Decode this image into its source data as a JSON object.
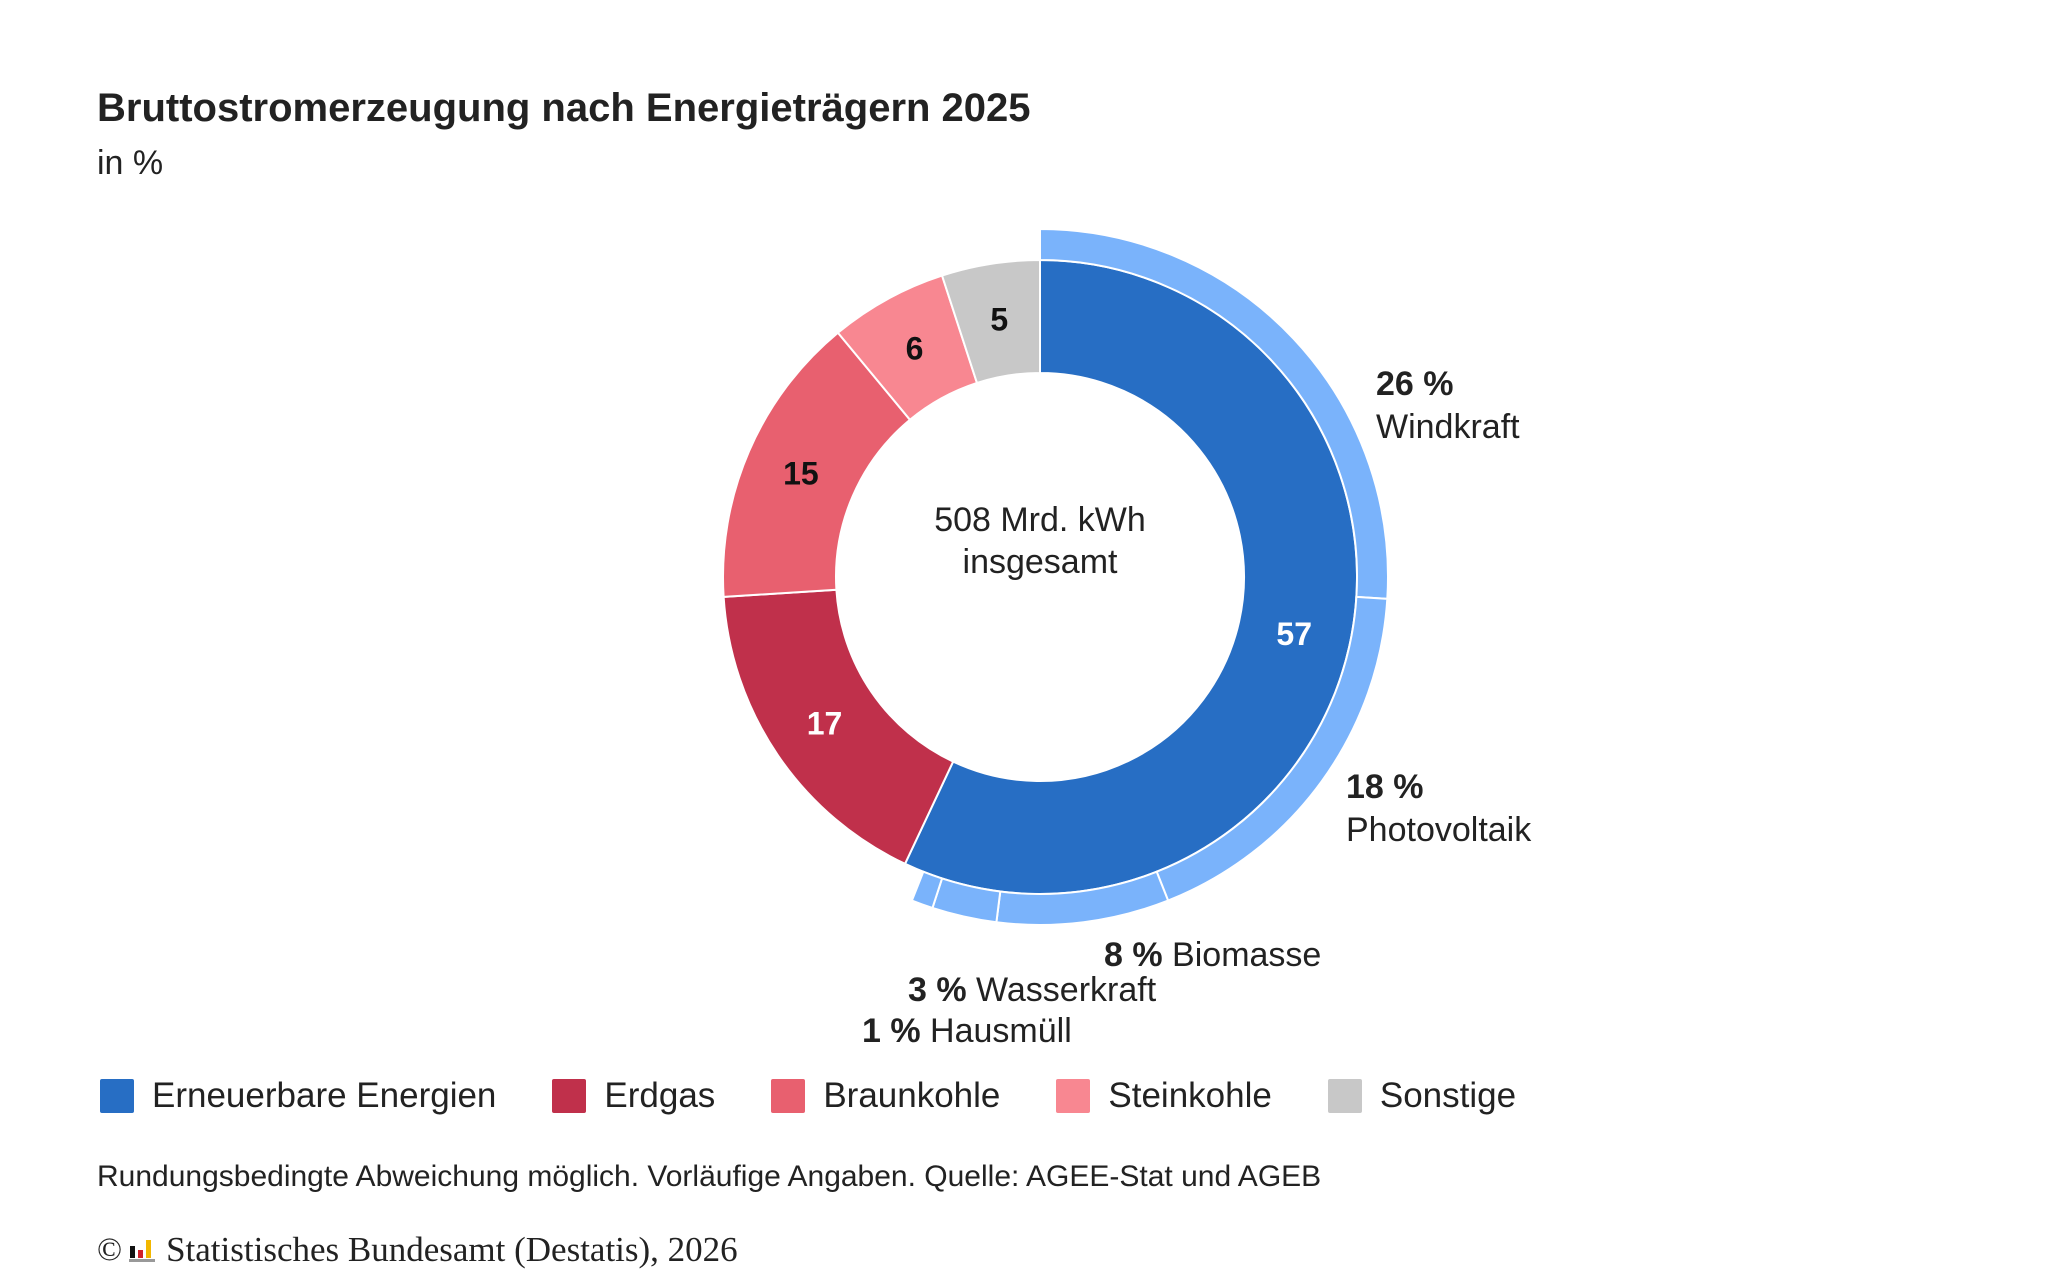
{
  "title": "Bruttostromerzeugung nach Energieträgern 2025",
  "subtitle": "in %",
  "center_label": [
    "508 Mrd. kWh",
    "insgesamt"
  ],
  "legend": [
    {
      "label": "Erneuerbare Energien",
      "color": "#276ec4"
    },
    {
      "label": "Erdgas",
      "color": "#c0304b"
    },
    {
      "label": "Braunkohle",
      "color": "#e8606f"
    },
    {
      "label": "Steinkohle",
      "color": "#f88791"
    },
    {
      "label": "Sonstige",
      "color": "#c8c8c8"
    }
  ],
  "footnote": "Rundungsbedingte Abweichung möglich. Vorläufige Angaben. Quelle: AGEE-Stat und AGEB",
  "copyright": {
    "symbol": "©",
    "text": "Statistisches Bundesamt (Destatis), 2026",
    "logo": "destatis-logo-icon"
  },
  "chart_data": {
    "type": "pie",
    "variant": "donut with outer ring breakdown",
    "total_label": "508 Mrd. kWh insgesamt",
    "unit": "%",
    "inner": [
      {
        "name": "Erneuerbare Energien",
        "value": 57,
        "label": "57",
        "color": "#276ec4",
        "label_color": "#ffffff"
      },
      {
        "name": "Erdgas",
        "value": 17,
        "label": "17",
        "color": "#c0304b",
        "label_color": "#ffffff"
      },
      {
        "name": "Braunkohle",
        "value": 15,
        "label": "15",
        "color": "#e8606f",
        "label_color": "#111111"
      },
      {
        "name": "Steinkohle",
        "value": 6,
        "label": "6",
        "color": "#f88791",
        "label_color": "#111111"
      },
      {
        "name": "Sonstige",
        "value": 5,
        "label": "5",
        "color": "#c8c8c8",
        "label_color": "#111111"
      }
    ],
    "outer": [
      {
        "name": "Windkraft",
        "value": 26,
        "value_label": "26 %",
        "color": "#7ab3fb"
      },
      {
        "name": "Photovoltaik",
        "value": 18,
        "value_label": "18 %",
        "color": "#7ab3fb"
      },
      {
        "name": "Biomasse",
        "value": 8,
        "value_label": "8 %",
        "color": "#7ab3fb"
      },
      {
        "name": "Wasserkraft",
        "value": 3,
        "value_label": "3 %",
        "color": "#7ab3fb"
      },
      {
        "name": "Hausmüll",
        "value": 1,
        "value_label": "1 %",
        "color": "#7ab3fb"
      }
    ],
    "inner_total": 100
  }
}
